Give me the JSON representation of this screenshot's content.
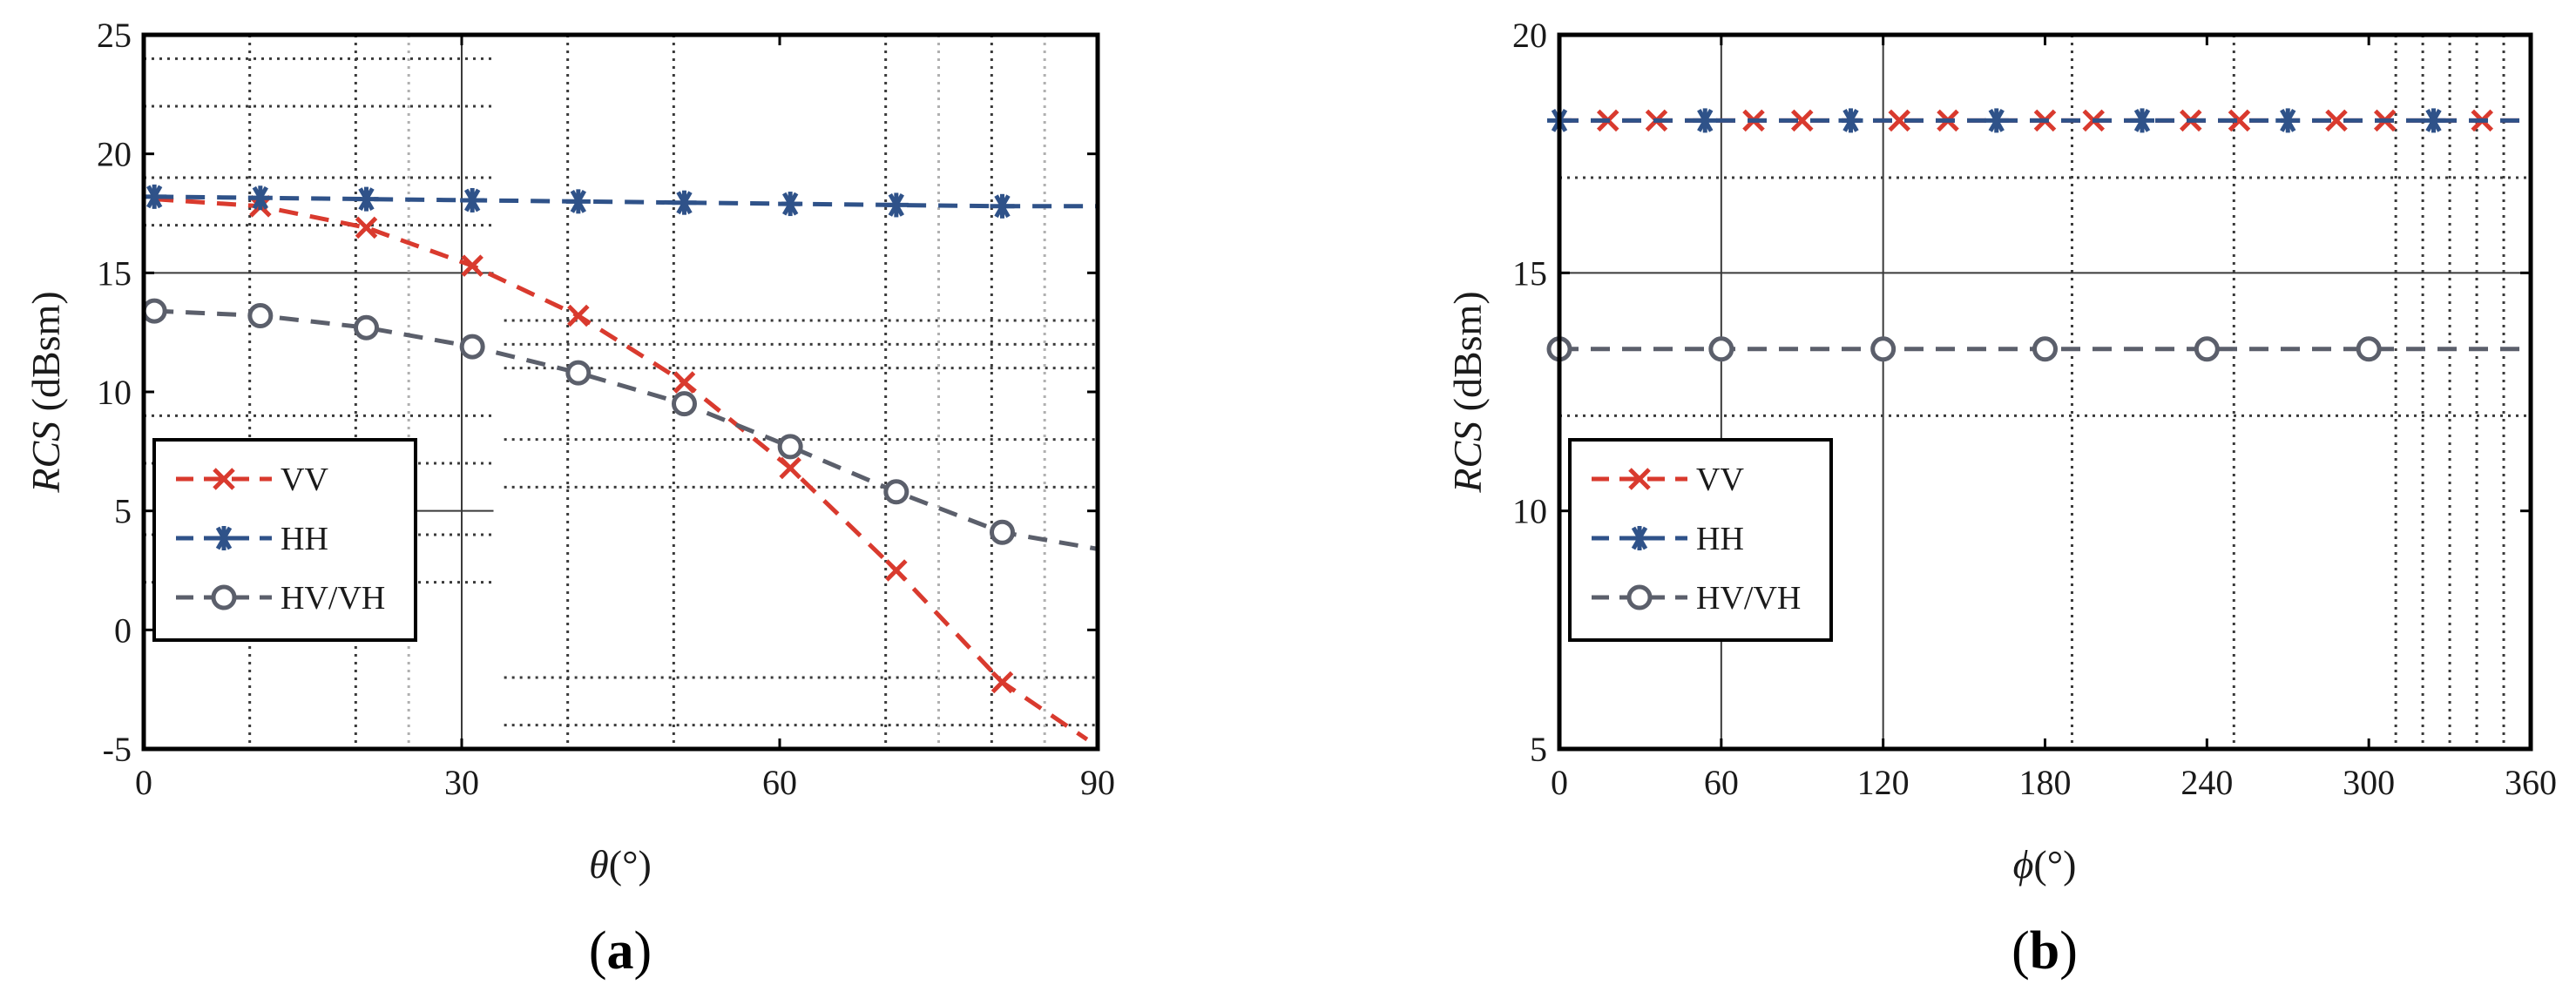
{
  "panel_tags": [
    {
      "open": "(",
      "letter": "a",
      "close": ")"
    },
    {
      "open": "(",
      "letter": "b",
      "close": ")"
    }
  ],
  "colors": {
    "VV": "#d93a2e",
    "HH": "#2f5289",
    "HV/VH": "#5b5f6b",
    "axis": "#000000",
    "grid_dark": "#3a3a3a",
    "grid_light": "#b0b0b0"
  },
  "chart_data": [
    {
      "type": "line",
      "panel": "a",
      "xlabel_symbol": "θ",
      "xlabel_unit": "(°)",
      "ylabel_italic": "RCS",
      "ylabel_unit": " (dBsm)",
      "xlim": [
        0,
        90
      ],
      "ylim": [
        -5,
        25
      ],
      "xticks": [
        0,
        30,
        60,
        90
      ],
      "yticks": [
        -5,
        0,
        5,
        10,
        15,
        20,
        25
      ],
      "grid": true,
      "legend_position": "lower-left",
      "series": [
        {
          "name": "VV",
          "marker": "x",
          "x": [
            1,
            11,
            21,
            31,
            41,
            51,
            61,
            71,
            81,
            89
          ],
          "y": [
            18.1,
            17.8,
            16.9,
            15.3,
            13.2,
            10.4,
            6.8,
            2.5,
            -2.2,
            -4.6
          ],
          "markers_x": [
            11,
            21,
            31,
            41,
            51,
            61,
            71,
            81
          ]
        },
        {
          "name": "HH",
          "marker": "*",
          "x": [
            1,
            11,
            21,
            31,
            41,
            51,
            61,
            71,
            81,
            90
          ],
          "y": [
            18.2,
            18.15,
            18.1,
            18.05,
            18.0,
            17.95,
            17.9,
            17.85,
            17.8,
            17.8
          ],
          "markers_x": [
            1,
            11,
            21,
            31,
            41,
            51,
            61,
            71,
            81
          ]
        },
        {
          "name": "HV/VH",
          "marker": "o",
          "x": [
            1,
            11,
            21,
            31,
            41,
            51,
            61,
            71,
            81,
            90
          ],
          "y": [
            13.4,
            13.2,
            12.7,
            11.9,
            10.8,
            9.5,
            7.7,
            5.8,
            4.1,
            3.4
          ],
          "markers_x": [
            1,
            11,
            21,
            31,
            41,
            51,
            61,
            71,
            81
          ]
        }
      ]
    },
    {
      "type": "line",
      "panel": "b",
      "xlabel_symbol": "ϕ",
      "xlabel_unit": "(°)",
      "ylabel_italic": "RCS",
      "ylabel_unit": " (dBsm)",
      "xlim": [
        0,
        360
      ],
      "ylim": [
        5,
        20
      ],
      "xticks": [
        0,
        60,
        120,
        180,
        240,
        300,
        360
      ],
      "yticks": [
        5,
        10,
        15,
        20
      ],
      "grid": true,
      "legend_position": "lower-left",
      "series": [
        {
          "name": "VV",
          "marker": "x",
          "x": [
            0,
            360
          ],
          "y": [
            18.2,
            18.2
          ],
          "markers_x": [
            18,
            36,
            72,
            90,
            126,
            144,
            180,
            198,
            234,
            252,
            288,
            306,
            342
          ]
        },
        {
          "name": "HH",
          "marker": "*",
          "x": [
            0,
            360
          ],
          "y": [
            18.2,
            18.2
          ],
          "markers_x": [
            0,
            54,
            108,
            162,
            216,
            270,
            324
          ]
        },
        {
          "name": "HV/VH",
          "marker": "o",
          "x": [
            0,
            360
          ],
          "y": [
            13.4,
            13.4
          ],
          "markers_x": [
            0,
            60,
            120,
            180,
            240,
            300
          ]
        }
      ]
    }
  ]
}
